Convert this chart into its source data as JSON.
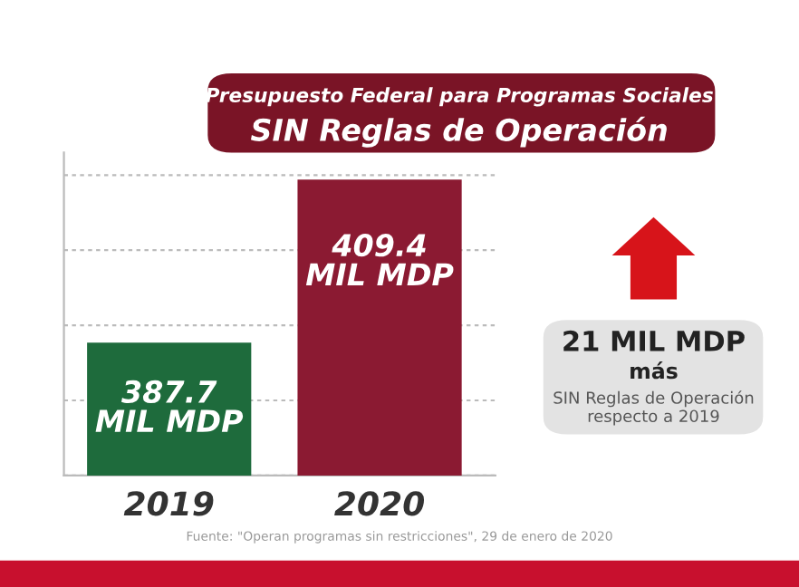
{
  "chart_data": {
    "type": "bar",
    "title": "Presupuesto Federal para Programas Sociales",
    "subtitle": "SIN Reglas de Operación",
    "categories": [
      "2019",
      "2020"
    ],
    "values": [
      387.7,
      409.4
    ],
    "colors": [
      "#1e6b3c",
      "#8b1a32"
    ],
    "ylim": [
      370,
      413
    ],
    "value_labels": [
      "387.7\nMIL MDP",
      "409.4\nMIL MDP"
    ],
    "grid": "y",
    "annotations": [
      "21 MIL MDP",
      "más",
      "SIN Reglas de Operación\nrespecto a 2019",
      "Fuente: \"Operan programas sin restricciones\", 29 de enero de 2020"
    ]
  }
}
